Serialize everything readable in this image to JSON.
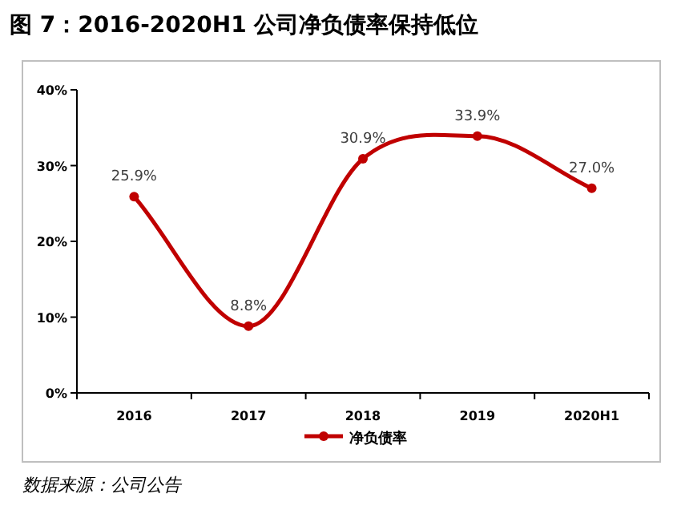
{
  "chart_data": {
    "type": "line",
    "title": "图 7：2016-2020H1 公司净负债率保持低位",
    "categories": [
      "2016",
      "2017",
      "2018",
      "2019",
      "2020H1"
    ],
    "series": [
      {
        "name": "净负债率",
        "color": "#c00000",
        "values": [
          25.9,
          8.8,
          30.9,
          33.9,
          27.0
        ],
        "value_labels": [
          "25.9%",
          "8.8%",
          "30.9%",
          "33.9%",
          "27.0%"
        ]
      }
    ],
    "ylim": [
      0,
      40
    ],
    "yticks": [
      {
        "value": 0,
        "label": "0%"
      },
      {
        "value": 10,
        "label": "10%"
      },
      {
        "value": 20,
        "label": "20%"
      },
      {
        "value": 30,
        "label": "30%"
      },
      {
        "value": 40,
        "label": "40%"
      }
    ],
    "grid": false,
    "legend": "bottom",
    "marker": "circle",
    "line_style": "solid",
    "annotations": [
      "数据来源：公司公告"
    ]
  }
}
